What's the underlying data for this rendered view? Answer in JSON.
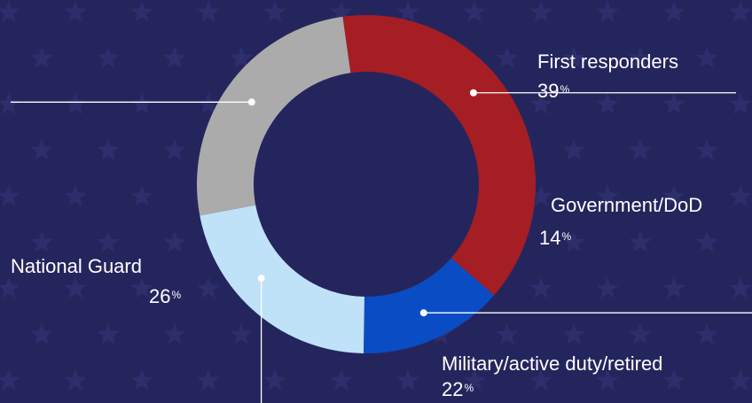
{
  "colors": {
    "background": "#25255e",
    "star": "#2e2e6c",
    "donut_hole": "#25255e",
    "leader_line": "#ffffff"
  },
  "chart_data": {
    "type": "pie",
    "title": "",
    "start_angle_deg": -8,
    "slices": [
      {
        "label": "First responders",
        "value": 39,
        "unit": "%",
        "color": "#a51e23"
      },
      {
        "label": "Government/DoD",
        "value": 14,
        "unit": "%",
        "color": "#0a4cc4"
      },
      {
        "label": "Military/active duty/retired",
        "value": 22,
        "unit": "%",
        "color": "#bfe2f8"
      },
      {
        "label": "National Guard",
        "value": 26,
        "unit": "%",
        "color": "#ababab"
      }
    ]
  }
}
